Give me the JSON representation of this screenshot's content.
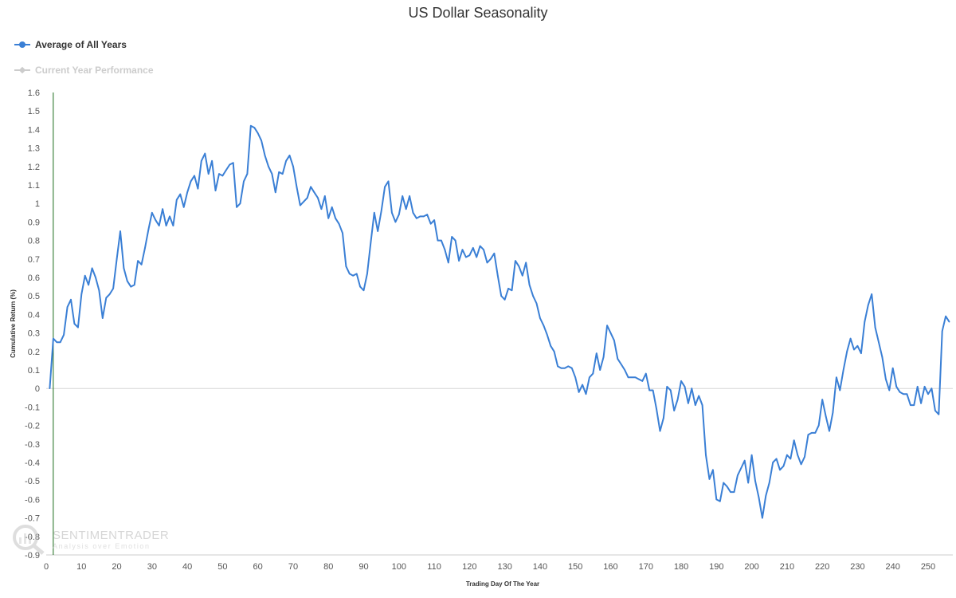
{
  "chart_data": {
    "type": "line",
    "title": "US Dollar Seasonality",
    "xlabel": "Trading Day Of The Year",
    "ylabel": "Cumulative Return (%)",
    "xlim": [
      0,
      257
    ],
    "ylim": [
      -0.9,
      1.6
    ],
    "x_ticks": [
      0,
      10,
      20,
      30,
      40,
      50,
      60,
      70,
      80,
      90,
      100,
      110,
      120,
      130,
      140,
      150,
      160,
      170,
      180,
      190,
      200,
      210,
      220,
      230,
      240,
      250
    ],
    "y_ticks": [
      -0.9,
      -0.8,
      -0.7,
      -0.6,
      -0.5,
      -0.4,
      -0.3,
      -0.2,
      -0.1,
      0,
      0.1,
      0.2,
      0.3,
      0.4,
      0.5,
      0.6,
      0.7,
      0.8,
      0.9,
      1,
      1.1,
      1.2,
      1.3,
      1.4,
      1.5,
      1.6
    ],
    "current_day_marker": 2,
    "legend_position": "top-left",
    "grid": false,
    "series": [
      {
        "name": "Average of All Years",
        "color": "#3a7fd5",
        "visible": true,
        "x_start": 1,
        "values": [
          0.0,
          0.27,
          0.25,
          0.25,
          0.29,
          0.44,
          0.48,
          0.35,
          0.33,
          0.51,
          0.61,
          0.56,
          0.65,
          0.6,
          0.53,
          0.38,
          0.49,
          0.51,
          0.54,
          0.7,
          0.85,
          0.65,
          0.58,
          0.55,
          0.56,
          0.69,
          0.67,
          0.76,
          0.86,
          0.95,
          0.91,
          0.88,
          0.97,
          0.88,
          0.93,
          0.88,
          1.02,
          1.05,
          0.98,
          1.06,
          1.12,
          1.15,
          1.08,
          1.23,
          1.27,
          1.16,
          1.23,
          1.07,
          1.16,
          1.15,
          1.18,
          1.21,
          1.22,
          0.98,
          1.0,
          1.12,
          1.16,
          1.42,
          1.41,
          1.38,
          1.34,
          1.26,
          1.2,
          1.16,
          1.06,
          1.17,
          1.16,
          1.23,
          1.26,
          1.2,
          1.09,
          0.99,
          1.01,
          1.03,
          1.09,
          1.06,
          1.03,
          0.97,
          1.04,
          0.92,
          0.98,
          0.92,
          0.89,
          0.84,
          0.66,
          0.62,
          0.61,
          0.62,
          0.55,
          0.53,
          0.62,
          0.79,
          0.95,
          0.85,
          0.96,
          1.09,
          1.12,
          0.95,
          0.9,
          0.94,
          1.04,
          0.97,
          1.04,
          0.95,
          0.92,
          0.93,
          0.93,
          0.94,
          0.89,
          0.91,
          0.8,
          0.8,
          0.75,
          0.68,
          0.82,
          0.8,
          0.69,
          0.75,
          0.71,
          0.72,
          0.76,
          0.71,
          0.77,
          0.75,
          0.68,
          0.7,
          0.73,
          0.61,
          0.5,
          0.48,
          0.54,
          0.53,
          0.69,
          0.66,
          0.61,
          0.68,
          0.56,
          0.5,
          0.46,
          0.38,
          0.34,
          0.29,
          0.23,
          0.2,
          0.12,
          0.11,
          0.11,
          0.12,
          0.11,
          0.06,
          -0.02,
          0.02,
          -0.03,
          0.06,
          0.08,
          0.19,
          0.1,
          0.17,
          0.34,
          0.3,
          0.26,
          0.16,
          0.13,
          0.1,
          0.06,
          0.06,
          0.06,
          0.05,
          0.04,
          0.08,
          -0.01,
          -0.01,
          -0.11,
          -0.23,
          -0.16,
          0.01,
          -0.01,
          -0.12,
          -0.06,
          0.04,
          0.01,
          -0.08,
          0.0,
          -0.09,
          -0.04,
          -0.09,
          -0.36,
          -0.49,
          -0.44,
          -0.6,
          -0.61,
          -0.51,
          -0.53,
          -0.56,
          -0.56,
          -0.47,
          -0.43,
          -0.39,
          -0.51,
          -0.36,
          -0.5,
          -0.59,
          -0.7,
          -0.58,
          -0.51,
          -0.4,
          -0.38,
          -0.44,
          -0.42,
          -0.36,
          -0.38,
          -0.28,
          -0.36,
          -0.41,
          -0.37,
          -0.25,
          -0.24,
          -0.24,
          -0.2,
          -0.06,
          -0.15,
          -0.23,
          -0.13,
          0.06,
          -0.01,
          0.1,
          0.2,
          0.27,
          0.21,
          0.23,
          0.19,
          0.36,
          0.45,
          0.51,
          0.33,
          0.25,
          0.17,
          0.05,
          -0.01,
          0.11,
          0.01,
          -0.02,
          -0.03,
          -0.03,
          -0.09,
          -0.09,
          0.01,
          -0.08,
          0.01,
          -0.03,
          0.0,
          -0.12,
          -0.14,
          0.31,
          0.39,
          0.36
        ]
      },
      {
        "name": "Current Year Performance",
        "color": "#cccccc",
        "visible": false,
        "values": []
      }
    ]
  },
  "watermark": {
    "name": "SENTIMENTRADER",
    "tagline": "Analysis over Emotion"
  }
}
